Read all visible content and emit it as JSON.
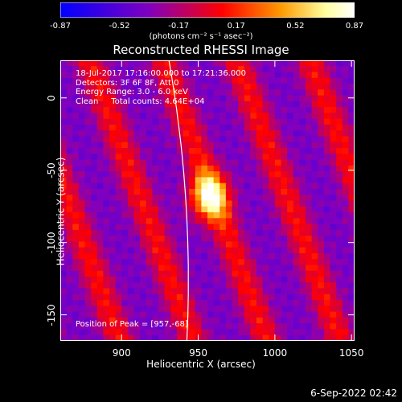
{
  "colorbar": {
    "ticks": [
      "-0.87",
      "-0.52",
      "-0.17",
      "0.17",
      "0.52",
      "0.87"
    ],
    "units": "(photons cm⁻² s⁻¹ asec⁻²)",
    "range": [
      -0.87,
      0.87
    ],
    "colors": [
      "#0000ff",
      "#8000c0",
      "#ff0000",
      "#ff9a00",
      "#ffff9e",
      "#ffffff"
    ]
  },
  "chart_data": {
    "type": "heatmap",
    "title": "Reconstructed RHESSI Image",
    "xlabel": "Heliocentric X (arcsec)",
    "ylabel": "Heliocentric Y (arcsec)",
    "xlim": [
      860,
      1052
    ],
    "ylim": [
      -168,
      26
    ],
    "xticks": [
      "900",
      "950",
      "1000",
      "1050"
    ],
    "yticks": [
      "0",
      "-50",
      "-100",
      "-150"
    ],
    "info_lines": [
      "18-Jul-2017 17:16:00.000 to 17:21:36.000",
      "Detectors: 3F 6F 8F, Att 0",
      "Energy Range: 3.0 - 6.0 keV",
      "Clean     Total counts: 4.64E+04"
    ],
    "peak_label": "Position of Peak = [957,-68]",
    "peak": [
      957,
      -68
    ],
    "limb_line_visible": true
  },
  "footer": {
    "date": "6-Sep-2022 02:42"
  }
}
